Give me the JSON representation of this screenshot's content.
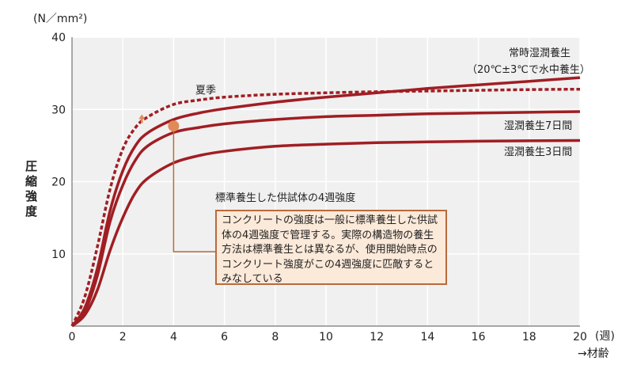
{
  "chart_data": {
    "type": "line",
    "y_unit": "(N／mm²)",
    "ylabel": "圧縮強度",
    "x_unit": "(週)",
    "xlabel": "→材齢",
    "xlim": [
      0,
      20
    ],
    "ylim": [
      0,
      40
    ],
    "x_ticks": [
      "0",
      "2",
      "4",
      "6",
      "8",
      "10",
      "12",
      "14",
      "16",
      "18",
      "20"
    ],
    "y_ticks": [
      "10",
      "20",
      "30",
      "40"
    ],
    "series": [
      {
        "name": "夏季",
        "style": "dashed",
        "color": "#a01e23",
        "x": [
          0,
          0.5,
          1,
          1.5,
          2,
          2.5,
          3,
          4,
          5,
          6,
          8,
          10,
          12,
          14,
          16,
          18,
          20
        ],
        "y": [
          0,
          4,
          11,
          19,
          24.5,
          27.5,
          29,
          30.7,
          31.3,
          31.7,
          32.1,
          32.3,
          32.45,
          32.55,
          32.65,
          32.75,
          32.8
        ]
      },
      {
        "name": "常時湿潤養生（20℃±3℃で水中養生）",
        "style": "solid",
        "color": "#a01e23",
        "x": [
          0,
          0.5,
          1,
          1.5,
          2,
          2.5,
          3,
          4,
          5,
          6,
          8,
          10,
          12,
          14,
          16,
          18,
          20
        ],
        "y": [
          0,
          2.5,
          8,
          16,
          21.5,
          25,
          26.8,
          28.6,
          29.5,
          30.1,
          31,
          31.7,
          32.3,
          32.9,
          33.4,
          33.9,
          34.4
        ]
      },
      {
        "name": "湿潤養生7日間",
        "style": "solid",
        "color": "#a01e23",
        "x": [
          0,
          0.5,
          1,
          1.5,
          2,
          2.5,
          3,
          4,
          5,
          6,
          8,
          10,
          12,
          14,
          16,
          18,
          20
        ],
        "y": [
          0,
          2,
          7,
          14.5,
          19.5,
          23,
          25,
          26.8,
          27.5,
          28,
          28.6,
          29,
          29.2,
          29.4,
          29.5,
          29.6,
          29.7
        ]
      },
      {
        "name": "湿潤養生3日間",
        "style": "solid",
        "color": "#a01e23",
        "x": [
          0,
          0.5,
          1,
          1.5,
          2,
          2.5,
          3,
          4,
          5,
          6,
          8,
          10,
          12,
          14,
          16,
          18,
          20
        ],
        "y": [
          0,
          1.5,
          5,
          10.5,
          15,
          18.5,
          20.5,
          22.6,
          23.6,
          24.2,
          24.9,
          25.2,
          25.4,
          25.5,
          25.6,
          25.65,
          25.7
        ]
      }
    ],
    "marker": {
      "x": 4,
      "y": 27.7,
      "color": "#e08a58"
    },
    "labels": {
      "summer": "夏季",
      "always_line1": "常時湿潤養生",
      "always_line2": "（20℃±3℃で水中養生）",
      "seven_days": "湿潤養生7日間",
      "three_days": "湿潤養生3日間",
      "callout_title": "標準養生した供試体の4週強度"
    },
    "note_text": "コンクリートの強度は一般に標準養生した供試体の4週強度で管理する。実際の構造物の養生方法は標準養生とは異なるが、使用開始時点のコンクリート強度がこの4週強度に匹敵するとみなしている"
  }
}
